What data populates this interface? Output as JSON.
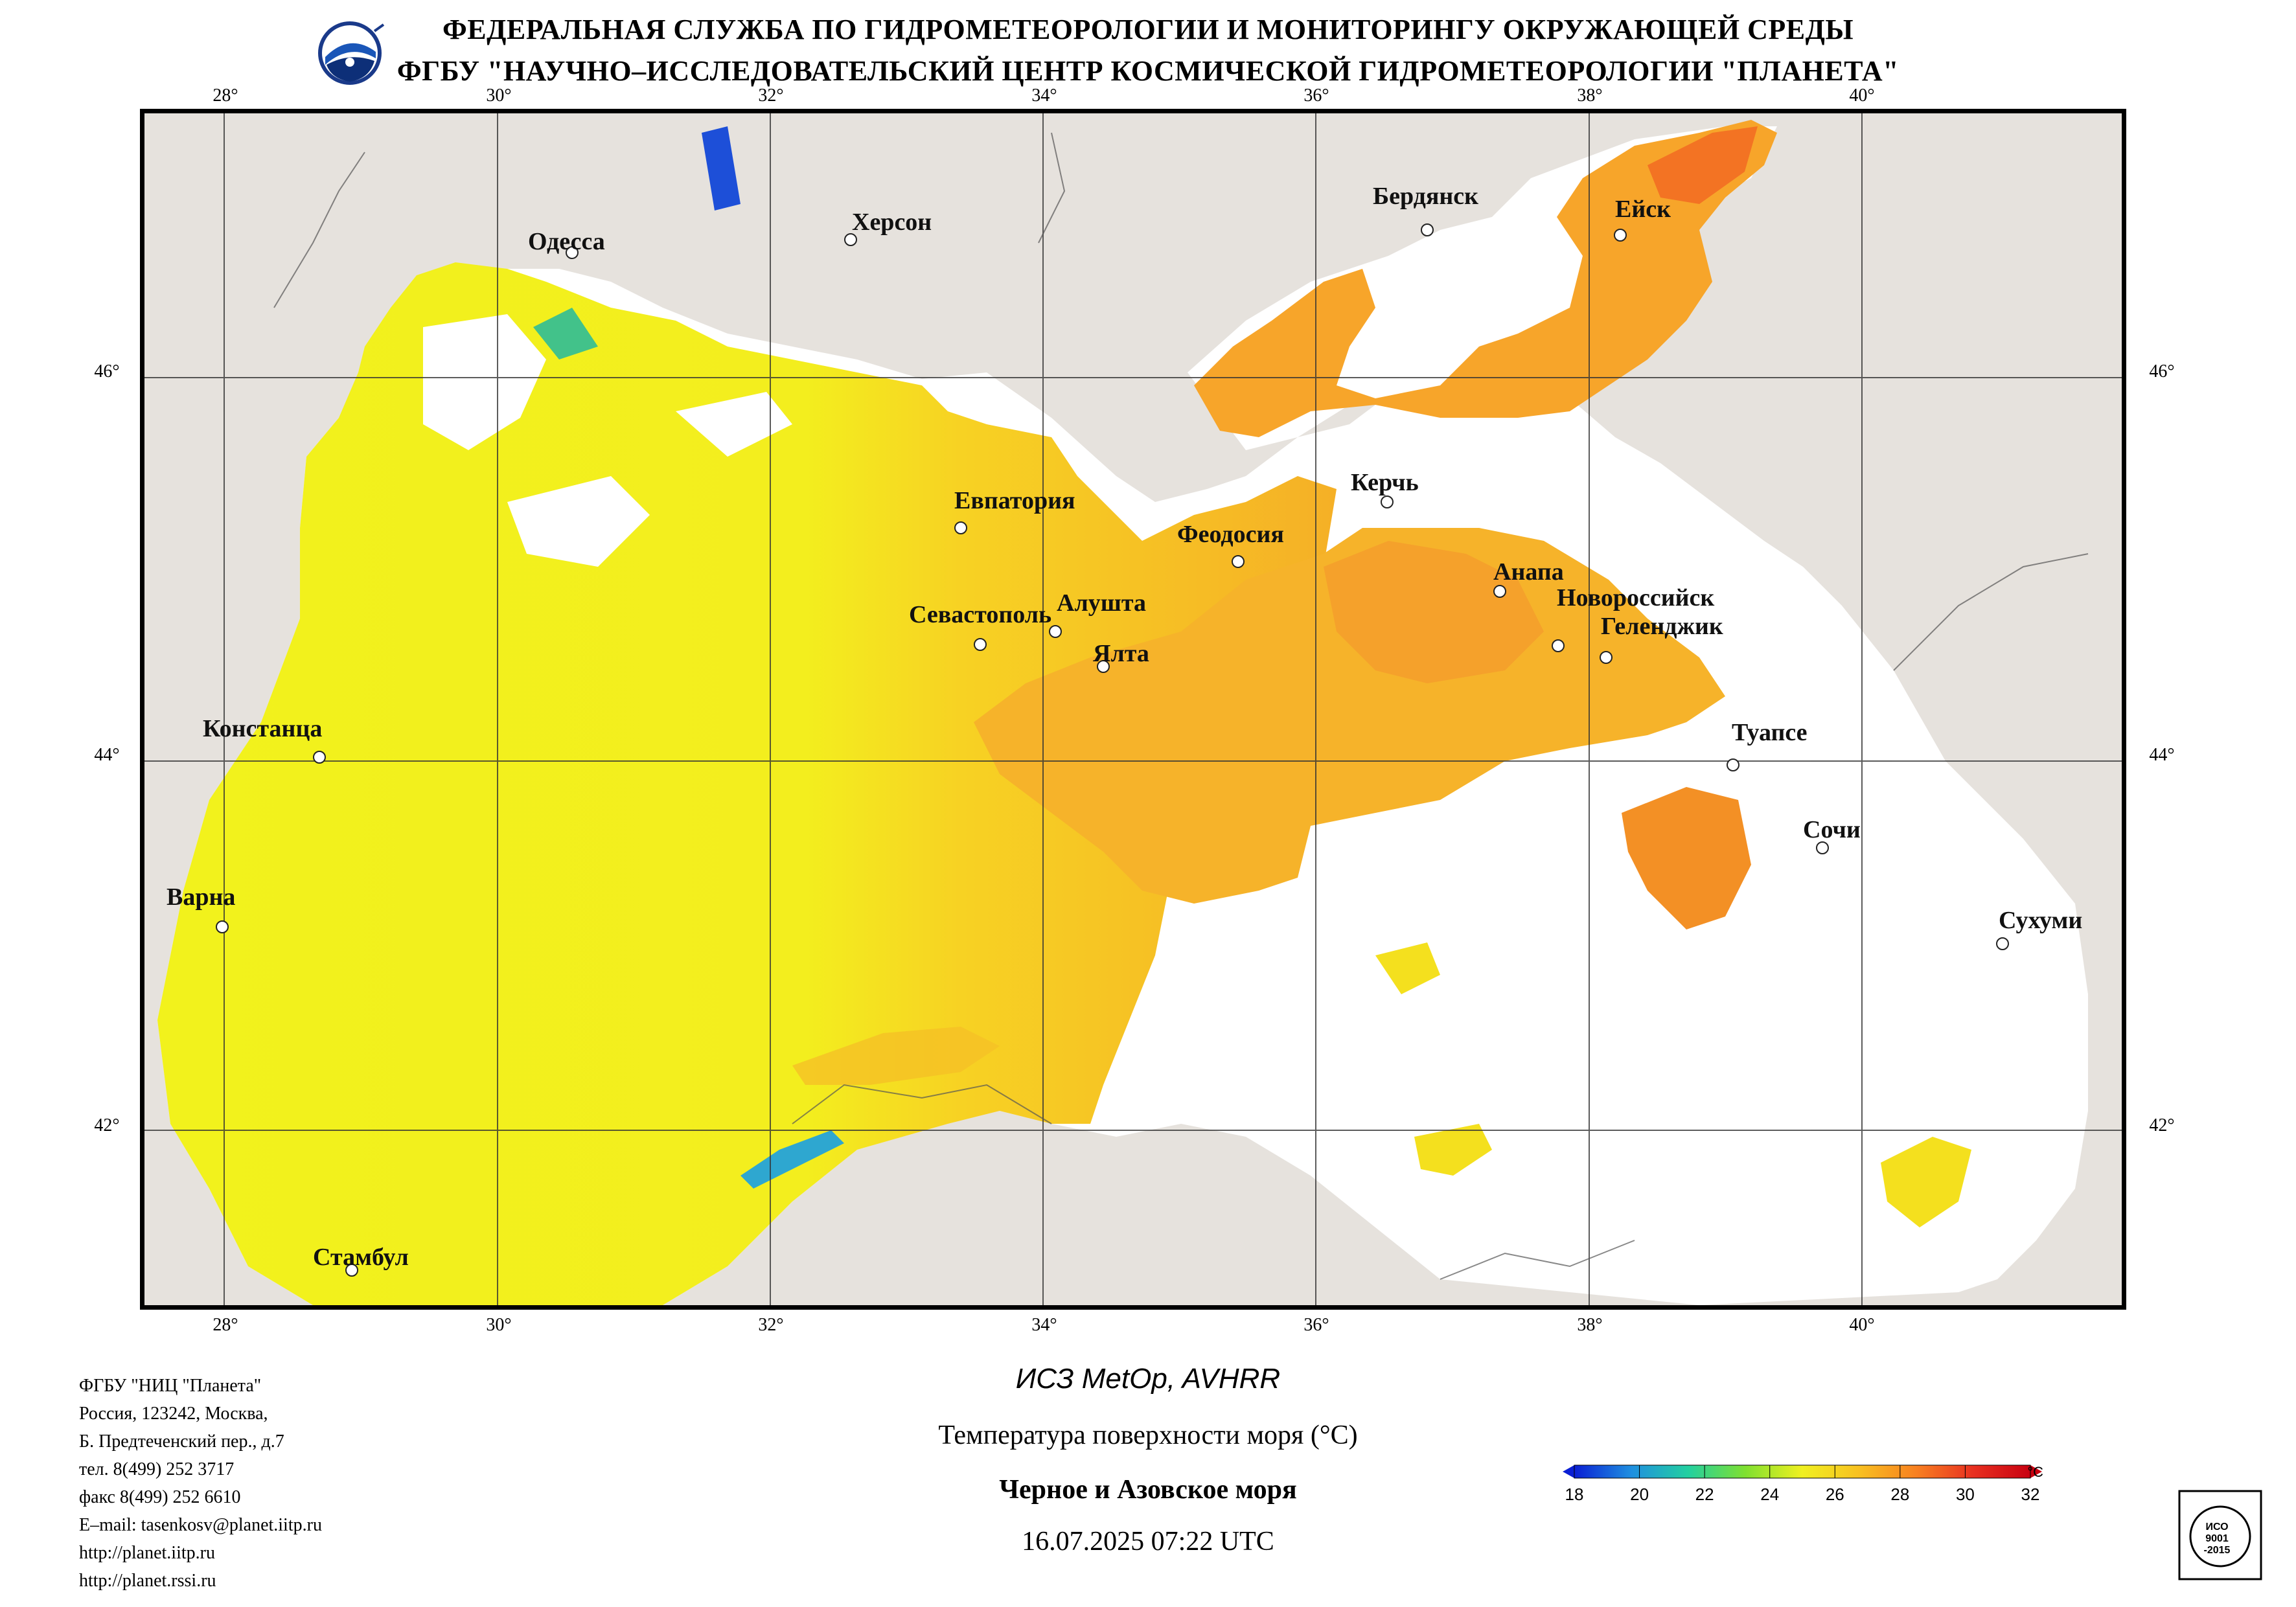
{
  "header": {
    "line1": "ФЕДЕРАЛЬНАЯ СЛУЖБА ПО ГИДРОМЕТЕОРОЛОГИИ И МОНИТОРИНГУ ОКРУЖАЮЩЕЙ СРЕДЫ",
    "line2": "ФГБУ \"НАУЧНО–ИССЛЕДОВАТЕЛЬСКИЙ ЦЕНТР КОСМИЧЕСКОЙ ГИДРОМЕТЕОРОЛОГИИ \"ПЛАНЕТА\""
  },
  "map": {
    "lon_ticks": [
      "28°",
      "30°",
      "32°",
      "34°",
      "36°",
      "38°",
      "40°"
    ],
    "lat_ticks": [
      "46°",
      "44°",
      "42°"
    ],
    "cities": [
      {
        "name": "Одесса"
      },
      {
        "name": "Херсон"
      },
      {
        "name": "Бердянск"
      },
      {
        "name": "Ейск"
      },
      {
        "name": "Евпатория"
      },
      {
        "name": "Керчь"
      },
      {
        "name": "Феодосия"
      },
      {
        "name": "Анапа"
      },
      {
        "name": "Севастополь"
      },
      {
        "name": "Алушта"
      },
      {
        "name": "Ялта"
      },
      {
        "name": "Новороссийск"
      },
      {
        "name": "Геленджик"
      },
      {
        "name": "Констанца"
      },
      {
        "name": "Туапсе"
      },
      {
        "name": "Сочи"
      },
      {
        "name": "Варна"
      },
      {
        "name": "Сухуми"
      },
      {
        "name": "Стамбул"
      }
    ],
    "colors": {
      "land": "#e6e2dd",
      "no_data": "#ffffff",
      "border": "#000000"
    }
  },
  "info_block": [
    "ФГБУ \"НИЦ \"Планета\"",
    "Россия, 123242, Москва,",
    "Б. Предтеченский пер., д.7",
    "тел. 8(499) 252 3717",
    "факс 8(499) 252 6610",
    "E–mail: tasenkosv@planet.iitp.ru",
    "http://planet.iitp.ru",
    "http://planet.rssi.ru"
  ],
  "caption": {
    "satellite": "ИСЗ MetOp, AVHRR",
    "parameter": "Температура поверхности моря (°C)",
    "region": "Черное и Азовское моря",
    "datetime": "16.07.2025 07:22 UTC"
  },
  "colorbar": {
    "unit": "°C",
    "ticks": [
      "18",
      "20",
      "22",
      "24",
      "26",
      "28",
      "30",
      "32"
    ],
    "colors": [
      "#0a1fd4",
      "#1f8fe0",
      "#22d0a0",
      "#7fe030",
      "#f0f020",
      "#f8c020",
      "#f88020",
      "#e83020",
      "#c80010"
    ]
  },
  "cert": {
    "line1": "ИСО",
    "line2": "9001",
    "line3": "-2015"
  }
}
